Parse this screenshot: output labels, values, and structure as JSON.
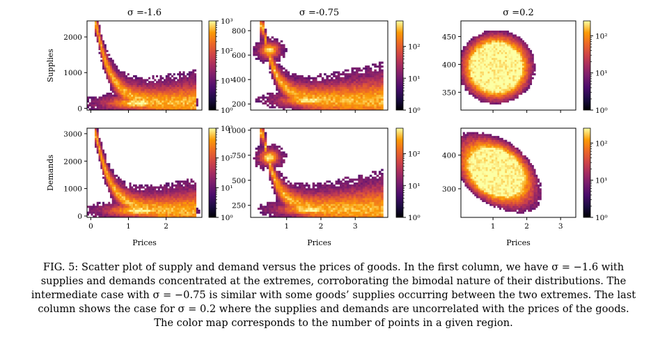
{
  "figure": {
    "caption_lines": [
      "FIG. 5: Scatter plot of supply and demand versus the prices of goods. In the first column, we have σ = −1.6 with",
      "supplies and demands concentrated at the extremes, corroborating the bimodal nature of their distributions. The",
      "intermediate case with σ = −0.75 is similar with some goods’ supplies occurring between the two extremes. The last",
      "column shows the case for σ = 0.2 where the supplies and demands are uncorrelated with the prices of the goods.",
      "The color map corresponds to the number of points in a given region."
    ],
    "colormap": "inferno",
    "colors": {
      "low": "#0d0829",
      "mid": "#bc3754",
      "high": "#f6f38d"
    }
  },
  "chart_data": [
    {
      "type": "heatmap",
      "title": "σ =-1.6",
      "xlabel": "",
      "ylabel": "Supplies",
      "xlim": [
        -0.1,
        2.95
      ],
      "ylim": [
        -50,
        2450
      ],
      "xticks": [
        {
          "v": 0,
          "label": ""
        },
        {
          "v": 1,
          "label": ""
        },
        {
          "v": 2,
          "label": ""
        }
      ],
      "yticks": [
        {
          "v": 0,
          "label": "0"
        },
        {
          "v": 1000,
          "label": "1000"
        },
        {
          "v": 2000,
          "label": "2000"
        }
      ],
      "clim_exp": 3,
      "colorbar_ticks": [
        {
          "e": 0,
          "label": "10⁰"
        },
        {
          "e": 1,
          "label": "10¹"
        },
        {
          "e": 2,
          "label": "10²"
        },
        {
          "e": 3,
          "label": "10³"
        }
      ],
      "peak": {
        "x": [
          0.1,
          0.3
        ],
        "y": [
          2300,
          2350
        ]
      },
      "density": {
        "kind": "L",
        "x0": 0.15,
        "x1": 2.8,
        "yhigh": 2350,
        "ylow": 150,
        "xmid": 0.9,
        "ymid": 500
      }
    },
    {
      "type": "heatmap",
      "title": "σ =-0.75",
      "xlabel": "",
      "ylabel": "",
      "xlim": [
        -0.05,
        3.95
      ],
      "ylim": [
        150,
        880
      ],
      "xticks": [
        {
          "v": 1,
          "label": ""
        },
        {
          "v": 2,
          "label": ""
        },
        {
          "v": 3,
          "label": ""
        }
      ],
      "yticks": [
        {
          "v": 200,
          "label": "200"
        },
        {
          "v": 400,
          "label": "400"
        },
        {
          "v": 600,
          "label": "600"
        },
        {
          "v": 800,
          "label": "800"
        }
      ],
      "clim_exp": 2.8,
      "colorbar_ticks": [
        {
          "e": 0,
          "label": "10⁰"
        },
        {
          "e": 1,
          "label": "10¹"
        },
        {
          "e": 2,
          "label": "10²"
        }
      ],
      "peak": {
        "x": [
          0.3,
          0.5
        ],
        "y": [
          820,
          840
        ]
      },
      "density": {
        "kind": "L2",
        "x0": 0.3,
        "x1": 3.8,
        "yhigh": 840,
        "ylow": 230,
        "xmid": 1.3,
        "ymid": 400,
        "blob": {
          "x": 0.5,
          "y": 640
        }
      }
    },
    {
      "type": "heatmap",
      "title": "σ =0.2",
      "xlabel": "",
      "ylabel": "",
      "xlim": [
        0.05,
        3.45
      ],
      "ylim": [
        318,
        478
      ],
      "xticks": [
        {
          "v": 1,
          "label": ""
        },
        {
          "v": 2,
          "label": ""
        },
        {
          "v": 3,
          "label": ""
        }
      ],
      "yticks": [
        {
          "v": 350,
          "label": "350"
        },
        {
          "v": 400,
          "label": "400"
        },
        {
          "v": 450,
          "label": "450"
        }
      ],
      "clim_exp": 2.4,
      "colorbar_ticks": [
        {
          "e": 0,
          "label": "10⁰"
        },
        {
          "e": 1,
          "label": "10¹"
        },
        {
          "e": 2,
          "label": "10²"
        }
      ],
      "peak": {
        "x": [
          0.5,
          3.3
        ],
        "y": [
          330,
          465
        ]
      },
      "density": {
        "kind": "blob",
        "cx": 1.1,
        "cy": 395,
        "rx": 0.95,
        "ry": 55,
        "tilt": 8
      }
    },
    {
      "type": "heatmap",
      "title": "",
      "xlabel": "Prices",
      "ylabel": "Demands",
      "xlim": [
        -0.1,
        2.95
      ],
      "ylim": [
        -50,
        3200
      ],
      "xticks": [
        {
          "v": 0,
          "label": "0"
        },
        {
          "v": 1,
          "label": "1"
        },
        {
          "v": 2,
          "label": "2"
        }
      ],
      "yticks": [
        {
          "v": 0,
          "label": "0"
        },
        {
          "v": 1000,
          "label": "1000"
        },
        {
          "v": 2000,
          "label": "2000"
        },
        {
          "v": 3000,
          "label": "3000"
        }
      ],
      "clim_exp": 3,
      "colorbar_ticks": [
        {
          "e": 0,
          "label": "10⁰"
        },
        {
          "e": 1,
          "label": "10¹"
        },
        {
          "e": 2,
          "label": "10²"
        },
        {
          "e": 3,
          "label": "10³"
        }
      ],
      "peak": {
        "x": [
          0.1,
          0.3
        ],
        "y": [
          2850,
          2950
        ]
      },
      "density": {
        "kind": "L",
        "x0": 0.15,
        "x1": 2.8,
        "yhigh": 2950,
        "ylow": 200,
        "xmid": 0.9,
        "ymid": 650
      }
    },
    {
      "type": "heatmap",
      "title": "",
      "xlabel": "Prices",
      "ylabel": "",
      "xlim": [
        -0.05,
        3.95
      ],
      "ylim": [
        130,
        1020
      ],
      "xticks": [
        {
          "v": 1,
          "label": "1"
        },
        {
          "v": 2,
          "label": "2"
        },
        {
          "v": 3,
          "label": "3"
        }
      ],
      "yticks": [
        {
          "v": 250,
          "label": "250"
        },
        {
          "v": 500,
          "label": "500"
        },
        {
          "v": 750,
          "label": "750"
        },
        {
          "v": 1000,
          "label": "1000"
        }
      ],
      "clim_exp": 2.8,
      "colorbar_ticks": [
        {
          "e": 0,
          "label": "10⁰"
        },
        {
          "e": 1,
          "label": "10¹"
        },
        {
          "e": 2,
          "label": "10²"
        }
      ],
      "peak": {
        "x": [
          0.3,
          0.5
        ],
        "y": [
          960,
          980
        ]
      },
      "density": {
        "kind": "L2",
        "x0": 0.3,
        "x1": 3.8,
        "yhigh": 980,
        "ylow": 210,
        "xmid": 1.3,
        "ymid": 450,
        "blob": {
          "x": 0.5,
          "y": 730
        }
      }
    },
    {
      "type": "heatmap",
      "title": "",
      "xlabel": "Prices",
      "ylabel": "",
      "xlim": [
        0.05,
        3.45
      ],
      "ylim": [
        215,
        480
      ],
      "xticks": [
        {
          "v": 1,
          "label": "1"
        },
        {
          "v": 2,
          "label": "2"
        },
        {
          "v": 3,
          "label": "3"
        }
      ],
      "yticks": [
        {
          "v": 300,
          "label": "300"
        },
        {
          "v": 400,
          "label": "400"
        }
      ],
      "clim_exp": 2.4,
      "colorbar_ticks": [
        {
          "e": 0,
          "label": "10⁰"
        },
        {
          "e": 1,
          "label": "10¹"
        },
        {
          "e": 2,
          "label": "10²"
        }
      ],
      "peak": {
        "x": [
          0.5,
          2.9
        ],
        "y": [
          255,
          460
        ]
      },
      "density": {
        "kind": "tri",
        "cx": 1.1,
        "cy": 350,
        "rx": 1.0,
        "ry": 90
      }
    }
  ]
}
